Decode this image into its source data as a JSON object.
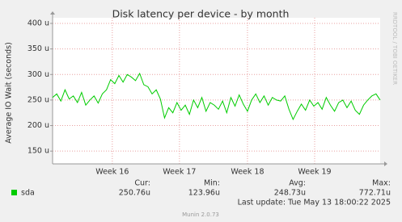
{
  "chart_data": {
    "type": "line",
    "title": "Disk latency per device - by month",
    "y_label": "Average IO Wait (seconds)",
    "x": [
      0,
      1,
      2,
      3,
      4,
      5,
      6,
      7,
      8,
      9,
      10,
      11,
      12,
      13,
      14,
      15,
      16,
      17,
      18,
      19,
      20,
      21,
      22,
      23,
      24,
      25,
      26,
      27,
      28,
      29,
      30,
      31,
      32,
      33,
      34,
      35,
      36,
      37,
      38,
      39,
      40,
      41,
      42,
      43,
      44,
      45,
      46,
      47,
      48,
      49,
      50,
      51,
      52,
      53,
      54,
      55,
      56,
      57,
      58,
      59,
      60,
      61,
      62,
      63,
      64,
      65,
      66,
      67,
      68,
      69,
      70,
      71,
      72,
      73,
      74,
      75,
      76,
      77,
      78,
      79
    ],
    "xlim": [
      0,
      79
    ],
    "xticks": [
      {
        "value": 14.4,
        "label": "Week 16"
      },
      {
        "value": 30.6,
        "label": "Week 17"
      },
      {
        "value": 47,
        "label": "Week 18"
      },
      {
        "value": 63.2,
        "label": "Week 19"
      }
    ],
    "ylim": [
      125,
      400
    ],
    "yticks": [
      {
        "value": 150,
        "label": "150 u"
      },
      {
        "value": 200,
        "label": "200 u"
      },
      {
        "value": 250,
        "label": "250 u"
      },
      {
        "value": 300,
        "label": "300 u"
      },
      {
        "value": 350,
        "label": "350 u"
      },
      {
        "value": 400,
        "label": "400 u"
      }
    ],
    "grid": true,
    "series": [
      {
        "name": "sda",
        "color": "#00cc00",
        "values": [
          255,
          262,
          248,
          270,
          252,
          258,
          245,
          265,
          240,
          250,
          258,
          244,
          262,
          270,
          290,
          282,
          298,
          285,
          300,
          295,
          288,
          302,
          280,
          276,
          262,
          270,
          252,
          215,
          235,
          225,
          245,
          230,
          240,
          222,
          250,
          235,
          255,
          228,
          245,
          240,
          232,
          248,
          225,
          255,
          238,
          260,
          242,
          228,
          250,
          262,
          245,
          258,
          240,
          255,
          250,
          248,
          258,
          232,
          212,
          228,
          242,
          230,
          250,
          238,
          245,
          232,
          255,
          240,
          228,
          245,
          250,
          235,
          248,
          230,
          222,
          240,
          250,
          258,
          262,
          250
        ]
      }
    ],
    "legend_columns": [
      "Cur:",
      "Min:",
      "Avg:",
      "Max:"
    ],
    "legend_values": [
      "250.76u",
      "123.96u",
      "248.73u",
      "772.71u"
    ],
    "last_update": "Last update: Tue May 13 18:00:22 2025",
    "footer": "Munin 2.0.73",
    "watermark": "RRDTOOL / TOBI OETIKER"
  }
}
